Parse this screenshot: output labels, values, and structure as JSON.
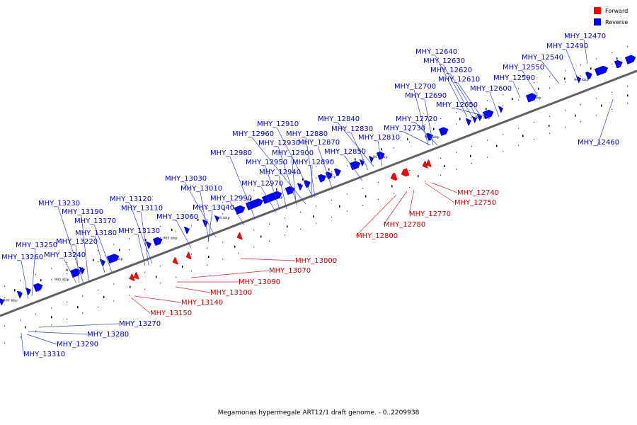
{
  "caption": "Megamonas hypermegale ART12/1 draft genome. - 0..2209938",
  "legend": [
    {
      "label": "Forward",
      "color": "#ff0000"
    },
    {
      "label": "Reverse",
      "color": "#0000ff"
    }
  ],
  "kbp_ticks": [
    "945 kbp",
    "950 kbp",
    "955 kbp",
    "960 kbp",
    "965 kbp",
    "970 kbp",
    "975 kbp",
    "980 kbp",
    "985 kbp",
    "990 kbp",
    "995 kbp",
    "1000 kbp"
  ],
  "reverse_labels": [
    "MHY_12470",
    "MHY_12490",
    "MHY_12540",
    "MHY_12550",
    "MHY_12590",
    "MHY_12600",
    "MHY_12640",
    "MHY_12630",
    "MHY_12620",
    "MHY_12610",
    "MHY_12700",
    "MHY_12690",
    "MHY_12650",
    "MHY_12720",
    "MHY_12730",
    "MHY_12840",
    "MHY_12830",
    "MHY_12810",
    "MHY_12850",
    "MHY_12910",
    "MHY_12960",
    "MHY_12880",
    "MHY_12930",
    "MHY_12870",
    "MHY_12980",
    "MHY_12900",
    "MHY_12950",
    "MHY_12890",
    "MHY_12940",
    "MHY_12970",
    "MHY_12990",
    "MHY_13030",
    "MHY_13010",
    "MHY_13040",
    "MHY_13060",
    "MHY_13120",
    "MHY_13110",
    "MHY_13130",
    "MHY_13230",
    "MHY_13190",
    "MHY_13170",
    "MHY_13180",
    "MHY_13220",
    "MHY_13240",
    "MHY_13250",
    "MHY_13260",
    "MHY_12460",
    "MHY_13270",
    "MHY_13280",
    "MHY_13290",
    "MHY_13310"
  ],
  "forward_labels": [
    "MHY_12740",
    "MHY_12750",
    "MHY_12770",
    "MHY_12780",
    "MHY_12800",
    "MHY_13000",
    "MHY_13070",
    "MHY_13090",
    "MHY_13100",
    "MHY_13140",
    "MHY_13150"
  ]
}
